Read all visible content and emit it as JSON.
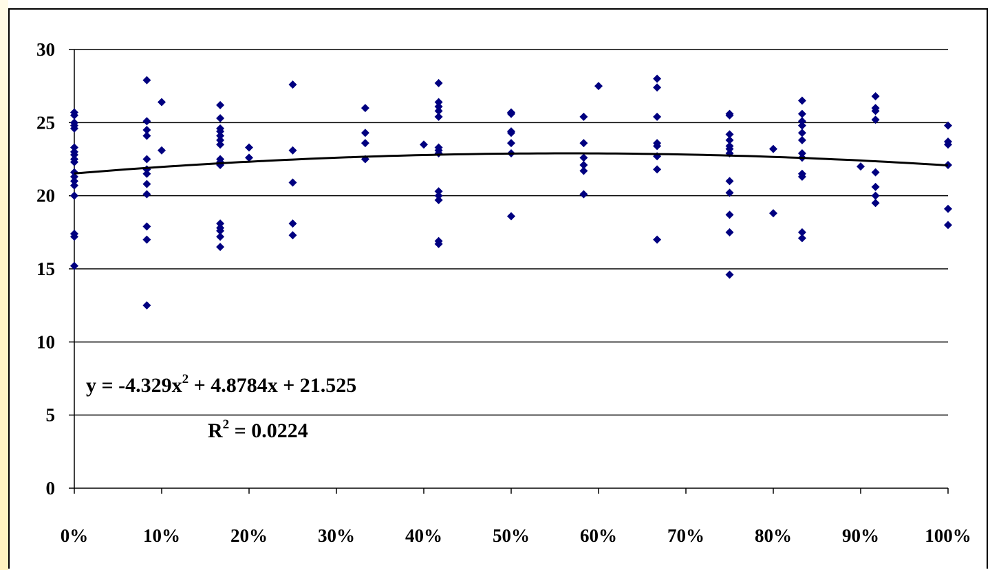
{
  "chart_data": {
    "type": "scatter",
    "title": "",
    "xlabel": "",
    "ylabel": "",
    "xlim": [
      0,
      1
    ],
    "ylim": [
      0,
      30
    ],
    "grid": "horizontal",
    "legend": "none",
    "point_color": "#000080",
    "trendline_color": "#000000",
    "x_ticks": [
      0,
      0.1,
      0.2,
      0.3,
      0.4,
      0.5,
      0.6,
      0.7,
      0.8,
      0.9,
      1.0
    ],
    "x_tick_labels": [
      "0%",
      "10%",
      "20%",
      "30%",
      "40%",
      "50%",
      "60%",
      "70%",
      "80%",
      "90%",
      "100%"
    ],
    "y_ticks": [
      0,
      5,
      10,
      15,
      20,
      25,
      30
    ],
    "y_tick_labels": [
      "0",
      "5",
      "10",
      "15",
      "20",
      "25",
      "30"
    ],
    "trendline": {
      "type": "polynomial",
      "order": 2,
      "coefficients": [
        -4.329,
        4.8784,
        21.525
      ],
      "equation_label": {
        "prefix": "y = -4.329x",
        "exponent": "2",
        "suffix": " + 4.8784x + 21.525"
      },
      "r2_label": {
        "prefix": "R",
        "exponent": "2",
        "suffix": " = 0.0224"
      }
    },
    "series": [
      {
        "points": [
          [
            0,
            25.7
          ],
          [
            0,
            25.5
          ],
          [
            0,
            25.0
          ],
          [
            0,
            24.8
          ],
          [
            0,
            24.6
          ],
          [
            0,
            23.3
          ],
          [
            0,
            23.0
          ],
          [
            0,
            22.8
          ],
          [
            0,
            22.5
          ],
          [
            0,
            22.3
          ],
          [
            0,
            21.6
          ],
          [
            0,
            21.3
          ],
          [
            0,
            21.0
          ],
          [
            0,
            20.7
          ],
          [
            0,
            20.0
          ],
          [
            0,
            17.4
          ],
          [
            0,
            17.2
          ],
          [
            0,
            15.2
          ],
          [
            0.083,
            27.9
          ],
          [
            0.083,
            25.1
          ],
          [
            0.083,
            24.5
          ],
          [
            0.083,
            24.1
          ],
          [
            0.083,
            22.5
          ],
          [
            0.083,
            21.8
          ],
          [
            0.083,
            21.5
          ],
          [
            0.083,
            20.8
          ],
          [
            0.083,
            20.1
          ],
          [
            0.083,
            17.9
          ],
          [
            0.083,
            17.0
          ],
          [
            0.083,
            12.5
          ],
          [
            0.1,
            26.4
          ],
          [
            0.1,
            23.1
          ],
          [
            0.167,
            26.2
          ],
          [
            0.167,
            25.3
          ],
          [
            0.167,
            24.6
          ],
          [
            0.167,
            24.4
          ],
          [
            0.167,
            24.1
          ],
          [
            0.167,
            23.8
          ],
          [
            0.167,
            23.5
          ],
          [
            0.167,
            22.5
          ],
          [
            0.167,
            22.3
          ],
          [
            0.167,
            22.1
          ],
          [
            0.167,
            18.1
          ],
          [
            0.167,
            17.8
          ],
          [
            0.167,
            17.6
          ],
          [
            0.167,
            17.2
          ],
          [
            0.167,
            16.5
          ],
          [
            0.2,
            23.3
          ],
          [
            0.2,
            22.6
          ],
          [
            0.25,
            27.6
          ],
          [
            0.25,
            23.1
          ],
          [
            0.25,
            20.9
          ],
          [
            0.25,
            18.1
          ],
          [
            0.25,
            17.3
          ],
          [
            0.333,
            26.0
          ],
          [
            0.333,
            24.3
          ],
          [
            0.333,
            23.6
          ],
          [
            0.333,
            22.5
          ],
          [
            0.4,
            23.5
          ],
          [
            0.417,
            27.7
          ],
          [
            0.417,
            26.4
          ],
          [
            0.417,
            26.1
          ],
          [
            0.417,
            25.8
          ],
          [
            0.417,
            25.4
          ],
          [
            0.417,
            23.3
          ],
          [
            0.417,
            23.1
          ],
          [
            0.417,
            22.9
          ],
          [
            0.417,
            20.3
          ],
          [
            0.417,
            20.0
          ],
          [
            0.417,
            19.7
          ],
          [
            0.417,
            16.9
          ],
          [
            0.417,
            16.7
          ],
          [
            0.5,
            25.7
          ],
          [
            0.5,
            25.6
          ],
          [
            0.5,
            24.4
          ],
          [
            0.5,
            24.3
          ],
          [
            0.5,
            23.6
          ],
          [
            0.5,
            22.9
          ],
          [
            0.5,
            18.6
          ],
          [
            0.583,
            25.4
          ],
          [
            0.583,
            23.6
          ],
          [
            0.583,
            22.6
          ],
          [
            0.583,
            22.1
          ],
          [
            0.583,
            21.7
          ],
          [
            0.583,
            20.1
          ],
          [
            0.6,
            27.5
          ],
          [
            0.667,
            28.0
          ],
          [
            0.667,
            27.4
          ],
          [
            0.667,
            25.4
          ],
          [
            0.667,
            23.6
          ],
          [
            0.667,
            23.4
          ],
          [
            0.667,
            22.7
          ],
          [
            0.667,
            21.8
          ],
          [
            0.667,
            17.0
          ],
          [
            0.75,
            25.6
          ],
          [
            0.75,
            25.5
          ],
          [
            0.75,
            24.2
          ],
          [
            0.75,
            23.8
          ],
          [
            0.75,
            23.4
          ],
          [
            0.75,
            23.2
          ],
          [
            0.75,
            22.9
          ],
          [
            0.75,
            21.0
          ],
          [
            0.75,
            20.2
          ],
          [
            0.75,
            18.7
          ],
          [
            0.75,
            17.5
          ],
          [
            0.75,
            14.6
          ],
          [
            0.8,
            23.2
          ],
          [
            0.8,
            18.8
          ],
          [
            0.833,
            26.5
          ],
          [
            0.833,
            25.6
          ],
          [
            0.833,
            25.1
          ],
          [
            0.833,
            24.8
          ],
          [
            0.833,
            24.3
          ],
          [
            0.833,
            23.8
          ],
          [
            0.833,
            22.9
          ],
          [
            0.833,
            22.6
          ],
          [
            0.833,
            21.5
          ],
          [
            0.833,
            21.3
          ],
          [
            0.833,
            17.5
          ],
          [
            0.833,
            17.1
          ],
          [
            0.9,
            22.0
          ],
          [
            0.917,
            26.8
          ],
          [
            0.917,
            26.0
          ],
          [
            0.917,
            25.8
          ],
          [
            0.917,
            25.2
          ],
          [
            0.917,
            21.6
          ],
          [
            0.917,
            20.6
          ],
          [
            0.917,
            20.0
          ],
          [
            0.917,
            19.5
          ],
          [
            1.0,
            24.8
          ],
          [
            1.0,
            23.7
          ],
          [
            1.0,
            23.5
          ],
          [
            1.0,
            22.1
          ],
          [
            1.0,
            19.1
          ],
          [
            1.0,
            18.0
          ]
        ]
      }
    ]
  }
}
